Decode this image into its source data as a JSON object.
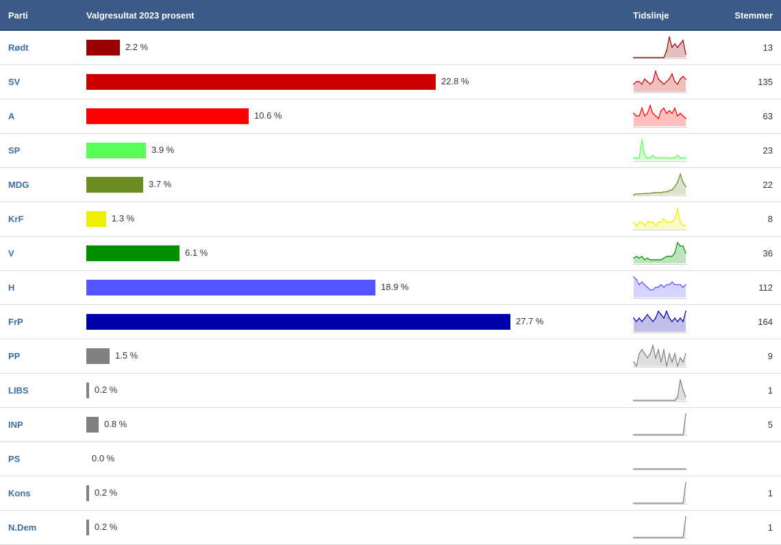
{
  "header": {
    "party": "Parti",
    "result": "Valgresultat 2023 prosent",
    "timeline": "Tidslinje",
    "votes": "Stemmer"
  },
  "chart_data": {
    "type": "bar",
    "title": "Valgresultat 2023 prosent",
    "xlabel": "Valgresultat 2023 prosent",
    "ylabel": "Parti",
    "xlim": [
      0,
      27.7
    ],
    "categories": [
      "Rødt",
      "SV",
      "A",
      "SP",
      "MDG",
      "KrF",
      "V",
      "H",
      "FrP",
      "PP",
      "LIBS",
      "INP",
      "PS",
      "Kons",
      "N.Dem"
    ],
    "values": [
      2.2,
      22.8,
      10.6,
      3.9,
      3.7,
      1.3,
      6.1,
      18.9,
      27.7,
      1.5,
      0.2,
      0.8,
      0.0,
      0.2,
      0.2
    ]
  },
  "rows": [
    {
      "party": "Rødt",
      "pct": 2.2,
      "pct_label": "2.2 %",
      "votes": "13",
      "color": "#990000",
      "spark": [
        0,
        0,
        0,
        0,
        0,
        0,
        0,
        0,
        0,
        0,
        0,
        0,
        2,
        6,
        3,
        4,
        3,
        4,
        5,
        1
      ]
    },
    {
      "party": "SV",
      "pct": 22.8,
      "pct_label": "22.8 %",
      "votes": "135",
      "color": "#cc0000",
      "spark": [
        3,
        4,
        4,
        3,
        5,
        4,
        3,
        4,
        8,
        5,
        4,
        3,
        4,
        5,
        7,
        4,
        3,
        5,
        6,
        5
      ]
    },
    {
      "party": "A",
      "pct": 10.6,
      "pct_label": "10.6 %",
      "votes": "63",
      "color": "#ff0000",
      "spark": [
        5,
        4,
        4,
        7,
        4,
        5,
        8,
        5,
        4,
        3,
        6,
        7,
        5,
        6,
        5,
        7,
        4,
        5,
        4,
        3
      ]
    },
    {
      "party": "SP",
      "pct": 3.9,
      "pct_label": "3.9 %",
      "votes": "23",
      "color": "#55ff55",
      "spark": [
        1,
        1,
        1,
        8,
        2,
        1,
        1,
        2,
        1,
        1,
        1,
        1,
        1,
        1,
        1,
        1,
        2,
        1,
        1,
        1
      ]
    },
    {
      "party": "MDG",
      "pct": 3.7,
      "pct_label": "3.7 %",
      "votes": "22",
      "color": "#6a8e23",
      "spark": [
        0,
        0.2,
        0.2,
        0.2,
        0.3,
        0.3,
        0.3,
        0.5,
        0.5,
        0.5,
        0.5,
        0.7,
        0.7,
        1,
        1.2,
        2,
        3,
        5,
        3,
        2
      ]
    },
    {
      "party": "KrF",
      "pct": 1.3,
      "pct_label": "1.3 %",
      "votes": "8",
      "color": "#eeee00",
      "spark": [
        2,
        1,
        2,
        2,
        1,
        2,
        2,
        2,
        1,
        2,
        2,
        3,
        2,
        2,
        2,
        3,
        6,
        2,
        1,
        1
      ]
    },
    {
      "party": "V",
      "pct": 6.1,
      "pct_label": "6.1 %",
      "votes": "36",
      "color": "#009000",
      "spark": [
        1.5,
        2,
        1.5,
        2,
        1,
        1.5,
        1,
        1,
        1,
        1,
        1,
        1.5,
        2,
        2,
        2,
        3,
        6,
        5,
        5,
        3
      ]
    },
    {
      "party": "H",
      "pct": 18.9,
      "pct_label": "18.9 %",
      "votes": "112",
      "color": "#5555ff",
      "spark": [
        8,
        7,
        5,
        6,
        5,
        4,
        3,
        3,
        4,
        4,
        5,
        4,
        5,
        5,
        6,
        5,
        5,
        5,
        4,
        5
      ]
    },
    {
      "party": "FrP",
      "pct": 27.7,
      "pct_label": "27.7 %",
      "votes": "164",
      "color": "#0000aa",
      "spark": [
        4,
        3,
        4,
        3,
        4,
        5,
        4,
        3,
        4,
        6,
        5,
        4,
        6,
        4,
        3,
        4,
        3,
        4,
        3,
        6
      ]
    },
    {
      "party": "PP",
      "pct": 1.5,
      "pct_label": "1.5 %",
      "votes": "9",
      "color": "#808080",
      "spark": [
        1,
        0,
        3,
        4,
        3,
        2,
        3,
        5,
        2,
        4,
        1,
        4,
        0,
        3,
        1,
        3,
        0,
        2,
        1,
        3
      ]
    },
    {
      "party": "LIBS",
      "pct": 0.2,
      "pct_label": "0.2 %",
      "votes": "1",
      "color": "#808080",
      "spark": [
        0,
        0,
        0,
        0,
        0,
        0,
        0,
        0,
        0,
        0,
        0,
        0,
        0,
        0,
        0,
        0,
        1,
        6,
        3,
        1
      ]
    },
    {
      "party": "INP",
      "pct": 0.8,
      "pct_label": "0.8 %",
      "votes": "5",
      "color": "#808080",
      "spark": [
        0,
        0,
        0,
        0,
        0,
        0,
        0,
        0,
        0,
        0,
        0,
        0,
        0,
        0,
        0,
        0,
        0,
        0,
        0,
        8
      ]
    },
    {
      "party": "PS",
      "pct": 0.0,
      "pct_label": "0.0 %",
      "votes": "",
      "color": "#808080",
      "spark": [
        0,
        0,
        0,
        0,
        0,
        0,
        0,
        0,
        0,
        0,
        0,
        0,
        0,
        0,
        0,
        0,
        0,
        0,
        0,
        0
      ]
    },
    {
      "party": "Kons",
      "pct": 0.2,
      "pct_label": "0.2 %",
      "votes": "1",
      "color": "#808080",
      "spark": [
        0,
        0,
        0,
        0,
        0,
        0,
        0,
        0,
        0,
        0,
        0,
        0,
        0,
        0,
        0,
        0,
        0,
        0,
        0,
        8
      ]
    },
    {
      "party": "N.Dem",
      "pct": 0.2,
      "pct_label": "0.2 %",
      "votes": "1",
      "color": "#808080",
      "spark": [
        0,
        0,
        0,
        0,
        0,
        0,
        0,
        0,
        0,
        0,
        0,
        0,
        0,
        0,
        0,
        0,
        0,
        0,
        0,
        8
      ]
    }
  ]
}
